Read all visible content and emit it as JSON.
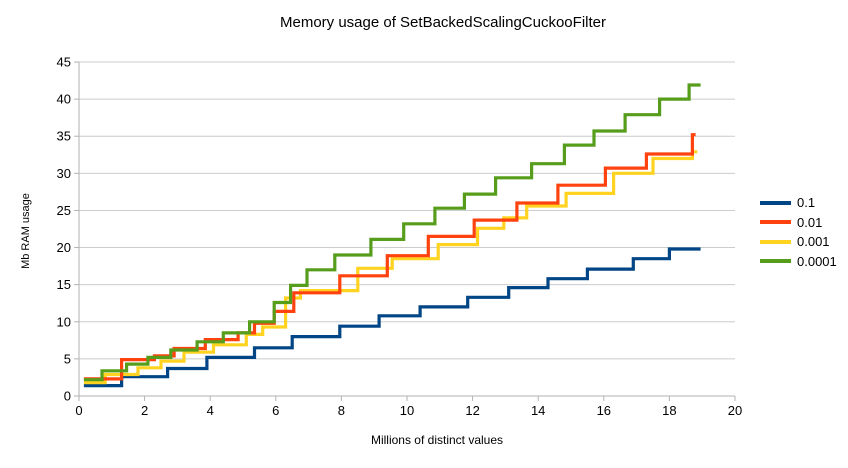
{
  "title": "Memory usage of SetBackedScalingCuckooFilter",
  "chart_data": {
    "type": "line",
    "line_style": "step-after",
    "title": "Memory usage of SetBackedScalingCuckooFilter",
    "xlabel": "Millions of distinct values",
    "ylabel": "Mb RAM usage",
    "xlim": [
      0,
      20
    ],
    "ylim": [
      0,
      45
    ],
    "xticks": [
      0,
      2,
      4,
      6,
      8,
      10,
      12,
      14,
      16,
      18,
      20
    ],
    "yticks": [
      0,
      5,
      10,
      15,
      20,
      25,
      30,
      35,
      40,
      45
    ],
    "grid": "horizontal",
    "legend_position": "right",
    "series": [
      {
        "name": "0.1",
        "color": "#004586",
        "points": [
          [
            0.15,
            1.4
          ],
          [
            1.3,
            2.6
          ],
          [
            2.7,
            3.7
          ],
          [
            3.9,
            5.2
          ],
          [
            5.35,
            6.5
          ],
          [
            6.5,
            8.0
          ],
          [
            7.95,
            9.4
          ],
          [
            9.15,
            10.8
          ],
          [
            10.4,
            12.0
          ],
          [
            11.85,
            13.3
          ],
          [
            13.1,
            14.6
          ],
          [
            14.3,
            15.8
          ],
          [
            15.5,
            17.1
          ],
          [
            16.9,
            18.5
          ],
          [
            18.0,
            19.8
          ],
          [
            18.95,
            19.8
          ]
        ]
      },
      {
        "name": "0.01",
        "color": "#FF420E",
        "points": [
          [
            0.15,
            2.3
          ],
          [
            1.3,
            4.9
          ],
          [
            2.3,
            5.4
          ],
          [
            2.9,
            6.4
          ],
          [
            3.85,
            7.6
          ],
          [
            4.85,
            8.5
          ],
          [
            5.35,
            9.8
          ],
          [
            5.95,
            11.4
          ],
          [
            6.55,
            13.9
          ],
          [
            7.95,
            16.2
          ],
          [
            9.4,
            18.9
          ],
          [
            10.65,
            21.5
          ],
          [
            12.05,
            23.7
          ],
          [
            13.35,
            26.0
          ],
          [
            14.6,
            28.4
          ],
          [
            16.05,
            30.7
          ],
          [
            17.3,
            32.6
          ],
          [
            18.7,
            35.2
          ],
          [
            18.8,
            35.2
          ]
        ]
      },
      {
        "name": "0.001",
        "color": "#FFD320",
        "points": [
          [
            0.15,
            1.8
          ],
          [
            0.8,
            2.9
          ],
          [
            1.8,
            3.8
          ],
          [
            2.5,
            4.7
          ],
          [
            3.2,
            5.9
          ],
          [
            4.1,
            6.9
          ],
          [
            5.1,
            8.3
          ],
          [
            5.6,
            9.3
          ],
          [
            6.3,
            13.2
          ],
          [
            6.75,
            14.2
          ],
          [
            8.5,
            17.2
          ],
          [
            9.55,
            18.5
          ],
          [
            10.95,
            20.4
          ],
          [
            12.15,
            22.6
          ],
          [
            12.95,
            24.0
          ],
          [
            13.65,
            25.6
          ],
          [
            14.85,
            27.3
          ],
          [
            16.3,
            30.0
          ],
          [
            17.5,
            32.0
          ],
          [
            18.7,
            32.9
          ],
          [
            18.85,
            32.9
          ]
        ]
      },
      {
        "name": "0.0001",
        "color": "#579D1C",
        "points": [
          [
            0.15,
            2.2
          ],
          [
            0.7,
            3.4
          ],
          [
            1.45,
            4.3
          ],
          [
            2.1,
            5.2
          ],
          [
            2.8,
            6.2
          ],
          [
            3.6,
            7.3
          ],
          [
            4.4,
            8.5
          ],
          [
            5.2,
            10.0
          ],
          [
            5.95,
            12.6
          ],
          [
            6.45,
            14.9
          ],
          [
            6.95,
            17.0
          ],
          [
            7.8,
            19.0
          ],
          [
            8.9,
            21.1
          ],
          [
            9.9,
            23.2
          ],
          [
            10.85,
            25.3
          ],
          [
            11.75,
            27.2
          ],
          [
            12.7,
            29.4
          ],
          [
            13.8,
            31.3
          ],
          [
            14.8,
            33.8
          ],
          [
            15.7,
            35.7
          ],
          [
            16.65,
            37.9
          ],
          [
            17.7,
            40.0
          ],
          [
            18.6,
            41.9
          ],
          [
            18.95,
            41.9
          ]
        ]
      }
    ]
  },
  "colors": {
    "background": "#ffffff",
    "grid": "#cccccc",
    "axis": "#b2b2b2",
    "text": "#000000"
  }
}
